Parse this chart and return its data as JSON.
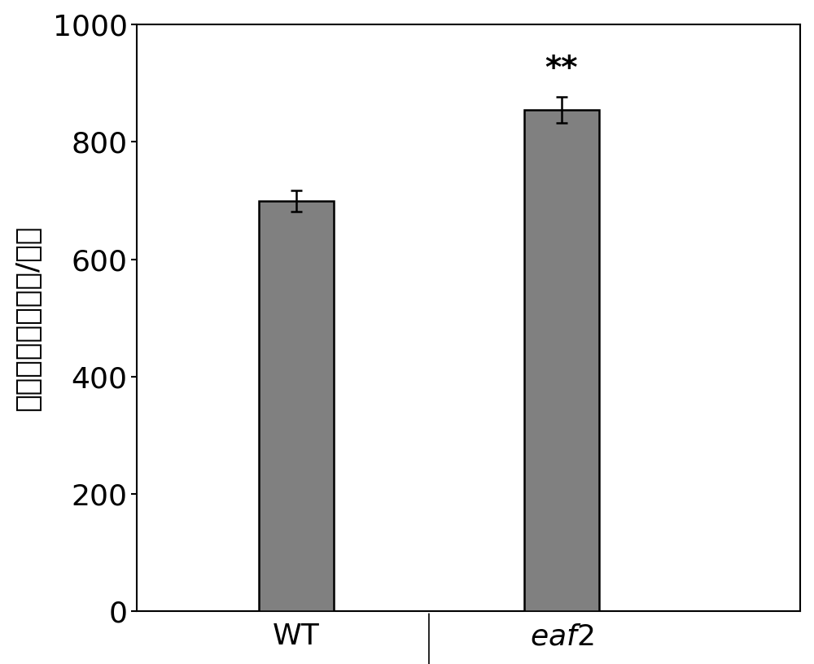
{
  "categories": [
    "WT",
    "eaf2"
  ],
  "values": [
    700,
    855
  ],
  "errors": [
    18,
    22
  ],
  "bar_color": "#808080",
  "bar_edgecolor": "#000000",
  "ylabel": "花青素含量（微克/克）",
  "ylim": [
    0,
    1000
  ],
  "yticks": [
    0,
    200,
    400,
    600,
    800,
    1000
  ],
  "significance": [
    "",
    "**"
  ],
  "bar_width": 0.28,
  "figsize": [
    10.0,
    8.16
  ],
  "dpi": 100,
  "background_color": "#ffffff",
  "spine_linewidth": 1.5,
  "errorbar_capsize": 5,
  "errorbar_linewidth": 1.8,
  "ylabel_fontsize": 26,
  "tick_fontsize": 26,
  "sig_fontsize": 28,
  "xtick_fontsize": 26,
  "x_positions": [
    1,
    2
  ],
  "xlim": [
    0.4,
    2.9
  ]
}
